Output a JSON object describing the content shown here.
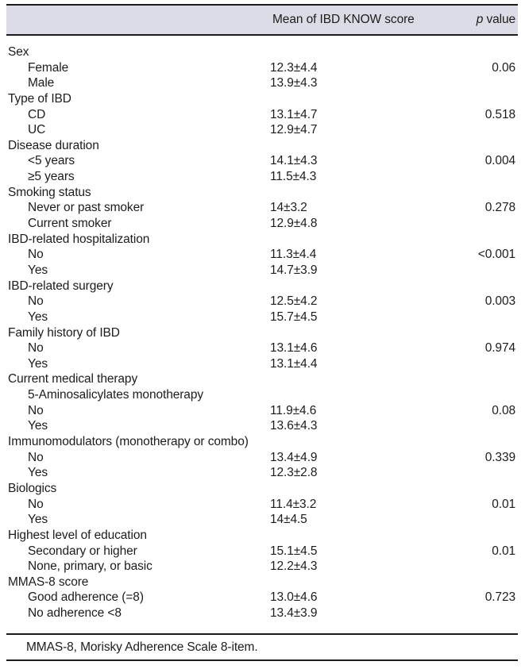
{
  "page": {
    "background_color": "#ffffff",
    "text_color": "#1c1c1c",
    "rule_color": "#1c1c1c"
  },
  "table": {
    "header": {
      "band_color": "#dcdce6",
      "score_col_label": "Mean of IBD KNOW score",
      "p_col_italic": "p",
      "p_col_rest": " value"
    },
    "rows": [
      {
        "label": "Sex",
        "indent": 0,
        "score": "",
        "p": ""
      },
      {
        "label": "Female",
        "indent": 1,
        "score": "12.3±4.4",
        "p": "0.06"
      },
      {
        "label": "Male",
        "indent": 1,
        "score": "13.9±4.3",
        "p": ""
      },
      {
        "label": "Type of IBD",
        "indent": 0,
        "score": "",
        "p": ""
      },
      {
        "label": "CD",
        "indent": 1,
        "score": "13.1±4.7",
        "p": "0.518"
      },
      {
        "label": "UC",
        "indent": 1,
        "score": "12.9±4.7",
        "p": ""
      },
      {
        "label": "Disease duration",
        "indent": 0,
        "score": "",
        "p": ""
      },
      {
        "label": "<5 years",
        "indent": 1,
        "score": "14.1±4.3",
        "p": "0.004"
      },
      {
        "label": "≥5 years",
        "indent": 1,
        "score": "11.5±4.3",
        "p": ""
      },
      {
        "label": "Smoking status",
        "indent": 0,
        "score": "",
        "p": ""
      },
      {
        "label": "Never or past smoker",
        "indent": 1,
        "score": "14±3.2",
        "p": "0.278"
      },
      {
        "label": "Current smoker",
        "indent": 1,
        "score": "12.9±4.8",
        "p": ""
      },
      {
        "label": "IBD-related hospitalization",
        "indent": 0,
        "score": "",
        "p": ""
      },
      {
        "label": "No",
        "indent": 1,
        "score": "11.3±4.4",
        "p": "<0.001"
      },
      {
        "label": "Yes",
        "indent": 1,
        "score": "14.7±3.9",
        "p": ""
      },
      {
        "label": "IBD-related surgery",
        "indent": 0,
        "score": "",
        "p": ""
      },
      {
        "label": "No",
        "indent": 1,
        "score": "12.5±4.2",
        "p": "0.003"
      },
      {
        "label": "Yes",
        "indent": 1,
        "score": "15.7±4.5",
        "p": ""
      },
      {
        "label": "Family history of IBD",
        "indent": 0,
        "score": "",
        "p": ""
      },
      {
        "label": "No",
        "indent": 1,
        "score": "13.1±4.6",
        "p": "0.974"
      },
      {
        "label": "Yes",
        "indent": 1,
        "score": "13.1±4.4",
        "p": ""
      },
      {
        "label": "Current medical therapy",
        "indent": 0,
        "score": "",
        "p": ""
      },
      {
        "label": "5-Aminosalicylates monotherapy",
        "indent": 1,
        "score": "",
        "p": ""
      },
      {
        "label": "No",
        "indent": 1,
        "score": "11.9±4.6",
        "p": "0.08"
      },
      {
        "label": "Yes",
        "indent": 1,
        "score": "13.6±4.3",
        "p": ""
      },
      {
        "label": "Immunomodulators (monotherapy or combo)",
        "indent": 0,
        "score": "",
        "p": ""
      },
      {
        "label": "No",
        "indent": 1,
        "score": "13.4±4.9",
        "p": "0.339"
      },
      {
        "label": "Yes",
        "indent": 1,
        "score": "12.3±2.8",
        "p": ""
      },
      {
        "label": "Biologics",
        "indent": 0,
        "score": "",
        "p": ""
      },
      {
        "label": "No",
        "indent": 1,
        "score": "11.4±3.2",
        "p": "0.01"
      },
      {
        "label": "Yes",
        "indent": 1,
        "score": "14±4.5",
        "p": ""
      },
      {
        "label": "Highest level of education",
        "indent": 0,
        "score": "",
        "p": ""
      },
      {
        "label": "Secondary or higher",
        "indent": 1,
        "score": "15.1±4.5",
        "p": "0.01"
      },
      {
        "label": "None, primary, or basic",
        "indent": 1,
        "score": "12.2±4.3",
        "p": ""
      },
      {
        "label": "MMAS-8 score",
        "indent": 0,
        "score": "",
        "p": ""
      },
      {
        "label": "Good adherence (=8)",
        "indent": 1,
        "score": "13.0±4.6",
        "p": "0.723"
      },
      {
        "label": "No adherence <8",
        "indent": 1,
        "score": "13.4±3.9",
        "p": ""
      }
    ],
    "footnote": "MMAS-8, Morisky Adherence Scale 8-item."
  }
}
